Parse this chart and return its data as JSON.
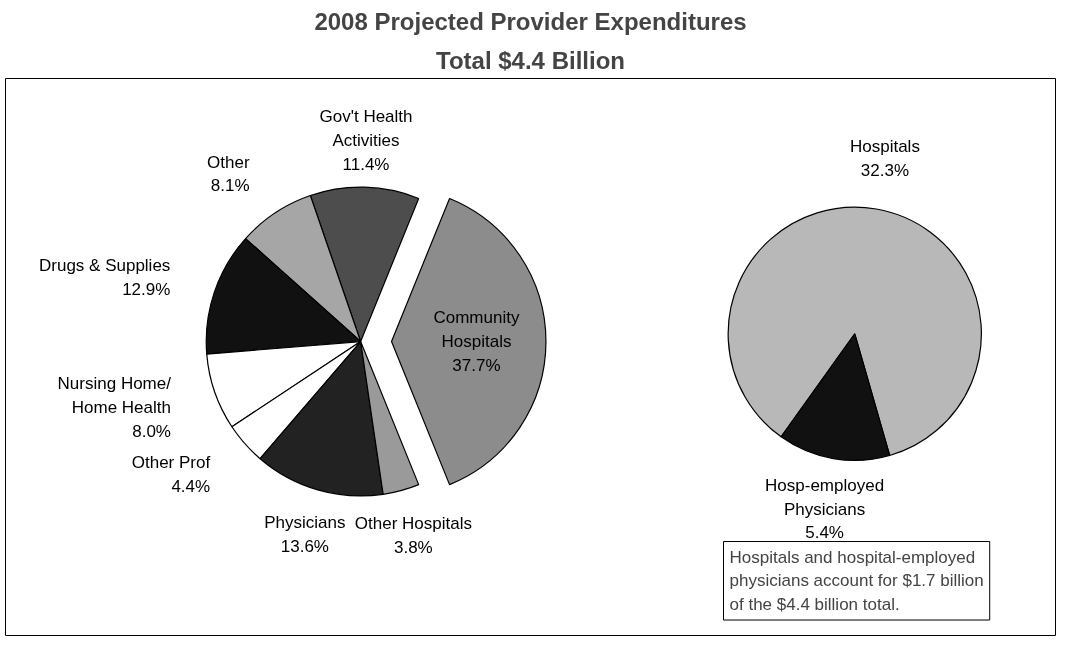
{
  "chart_data": [
    {
      "type": "pie",
      "title": "2008 Projected Provider Expenditures",
      "subtitle": "Total $4.4 Billion",
      "value_labels": [
        "37.7%",
        "11.4%",
        "8.1%",
        "12.9%",
        "8.0%",
        "4.4%",
        "13.6%",
        "3.8%"
      ],
      "categories": [
        "Community Hospitals",
        "Gov't Health Activities",
        "Other",
        "Drugs & Supplies",
        "Nursing Home/ Home Health",
        "Other Prof",
        "Physicians",
        "Other Hospitals"
      ],
      "values": [
        37.7,
        11.4,
        8.1,
        12.9,
        8.0,
        4.4,
        13.6,
        3.8
      ],
      "colors": [
        "#8c8c8c",
        "#4d4d4d",
        "#a6a6a6",
        "#111111",
        "#ffffff",
        "#ffffff",
        "#222222",
        "#9a9a9a"
      ]
    },
    {
      "type": "pie",
      "categories": [
        "Hospitals",
        "Hosp-employed Physicians"
      ],
      "values": [
        32.3,
        5.4
      ],
      "value_labels": [
        "32.3%",
        "5.4%"
      ],
      "colors": [
        "#b8b8b8",
        "#111111"
      ],
      "annotations": [
        "Hospitals and hospital-employed physicians account for $1.7 billion of the $4.4 billion total."
      ]
    }
  ]
}
